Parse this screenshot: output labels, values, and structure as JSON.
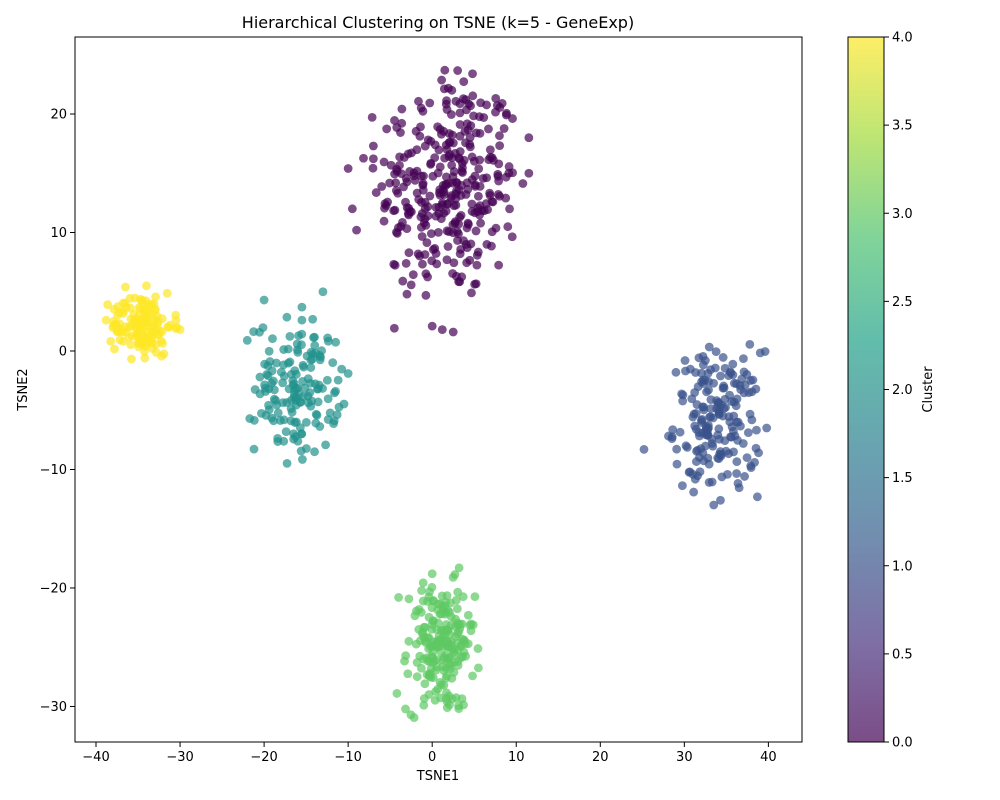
{
  "chart_data": {
    "type": "scatter",
    "title": "Hierarchical Clustering on TSNE (k=5 - GeneExp)",
    "xlabel": "TSNE1",
    "ylabel": "TSNE2",
    "xlim": [
      -42.5,
      44
    ],
    "ylim": [
      -33,
      26.5
    ],
    "xticks": [
      -40,
      -30,
      -20,
      -10,
      0,
      10,
      20,
      30,
      40
    ],
    "yticks": [
      -30,
      -20,
      -10,
      0,
      10,
      20
    ],
    "xtick_labels": [
      "−40",
      "−30",
      "−20",
      "−10",
      "0",
      "10",
      "20",
      "30",
      "40"
    ],
    "ytick_labels": [
      "−30",
      "−20",
      "−10",
      "0",
      "10",
      "20"
    ],
    "grid": false,
    "marker_alpha": 0.7,
    "colorbar": {
      "label": "Cluster",
      "range": [
        0,
        4
      ],
      "ticks": [
        "0.0",
        "0.5",
        "1.0",
        "1.5",
        "2.0",
        "2.5",
        "3.0",
        "3.5",
        "4.0"
      ],
      "colormap": "viridis",
      "colors": [
        "#440154",
        "#46327e",
        "#365c8d",
        "#277f8e",
        "#1fa187",
        "#4ac16d",
        "#a0da39",
        "#fde725"
      ]
    },
    "clusters": [
      {
        "cluster": 0,
        "color": "#440154",
        "count": 320,
        "center": [
          2,
          14
        ],
        "spread": [
          4.2,
          4.8
        ],
        "extra_points": [
          [
            -3,
            4.8
          ],
          [
            -3.5,
            5.9
          ],
          [
            1.2,
            1.8
          ],
          [
            2.5,
            1.6
          ],
          [
            0,
            2.1
          ],
          [
            11.5,
            18
          ],
          [
            11.5,
            15
          ],
          [
            -9,
            10.2
          ],
          [
            -9.5,
            12
          ],
          [
            -10,
            15.4
          ],
          [
            1.5,
            23.7
          ],
          [
            4.8,
            23.4
          ],
          [
            -7,
            17.3
          ]
        ]
      },
      {
        "cluster": 1,
        "color": "#3b528b",
        "count": 180,
        "center": [
          34,
          -6
        ],
        "spread": [
          2.6,
          3.0
        ],
        "extra_points": [
          [
            25.2,
            -8.3
          ],
          [
            39.8,
            -6.5
          ],
          [
            34.3,
            -12.6
          ],
          [
            33.5,
            -13
          ],
          [
            31,
            -10.4
          ],
          [
            29,
            -1.8
          ],
          [
            32.5,
            -0.8
          ]
        ]
      },
      {
        "cluster": 2,
        "color": "#21918c",
        "count": 150,
        "center": [
          -16,
          -3
        ],
        "spread": [
          2.5,
          2.8
        ],
        "extra_points": [
          [
            -22,
            0.9
          ],
          [
            -20,
            4.3
          ],
          [
            -15.5,
            3.7
          ],
          [
            -13,
            5
          ],
          [
            -14,
            -8.5
          ],
          [
            -10,
            -1.9
          ],
          [
            -20.5,
            -2.2
          ]
        ]
      },
      {
        "cluster": 3,
        "color": "#5ec962",
        "count": 200,
        "center": [
          1,
          -25
        ],
        "spread": [
          2.0,
          2.7
        ],
        "extra_points": [
          [
            -4,
            -20.8
          ],
          [
            3.2,
            -18.3
          ],
          [
            0,
            -18.8
          ],
          [
            -4.2,
            -28.9
          ],
          [
            1.8,
            -30.1
          ],
          [
            4.3,
            -22.3
          ],
          [
            -1,
            -29.9
          ]
        ]
      },
      {
        "cluster": 4,
        "color": "#fde725",
        "count": 140,
        "center": [
          -34.5,
          2.2
        ],
        "spread": [
          1.8,
          1.3
        ],
        "extra_points": [
          [
            -38.8,
            2.6
          ],
          [
            -36.5,
            5.4
          ],
          [
            -30,
            1.8
          ],
          [
            -34.2,
            -0.6
          ],
          [
            -34,
            5.5
          ]
        ]
      }
    ]
  }
}
